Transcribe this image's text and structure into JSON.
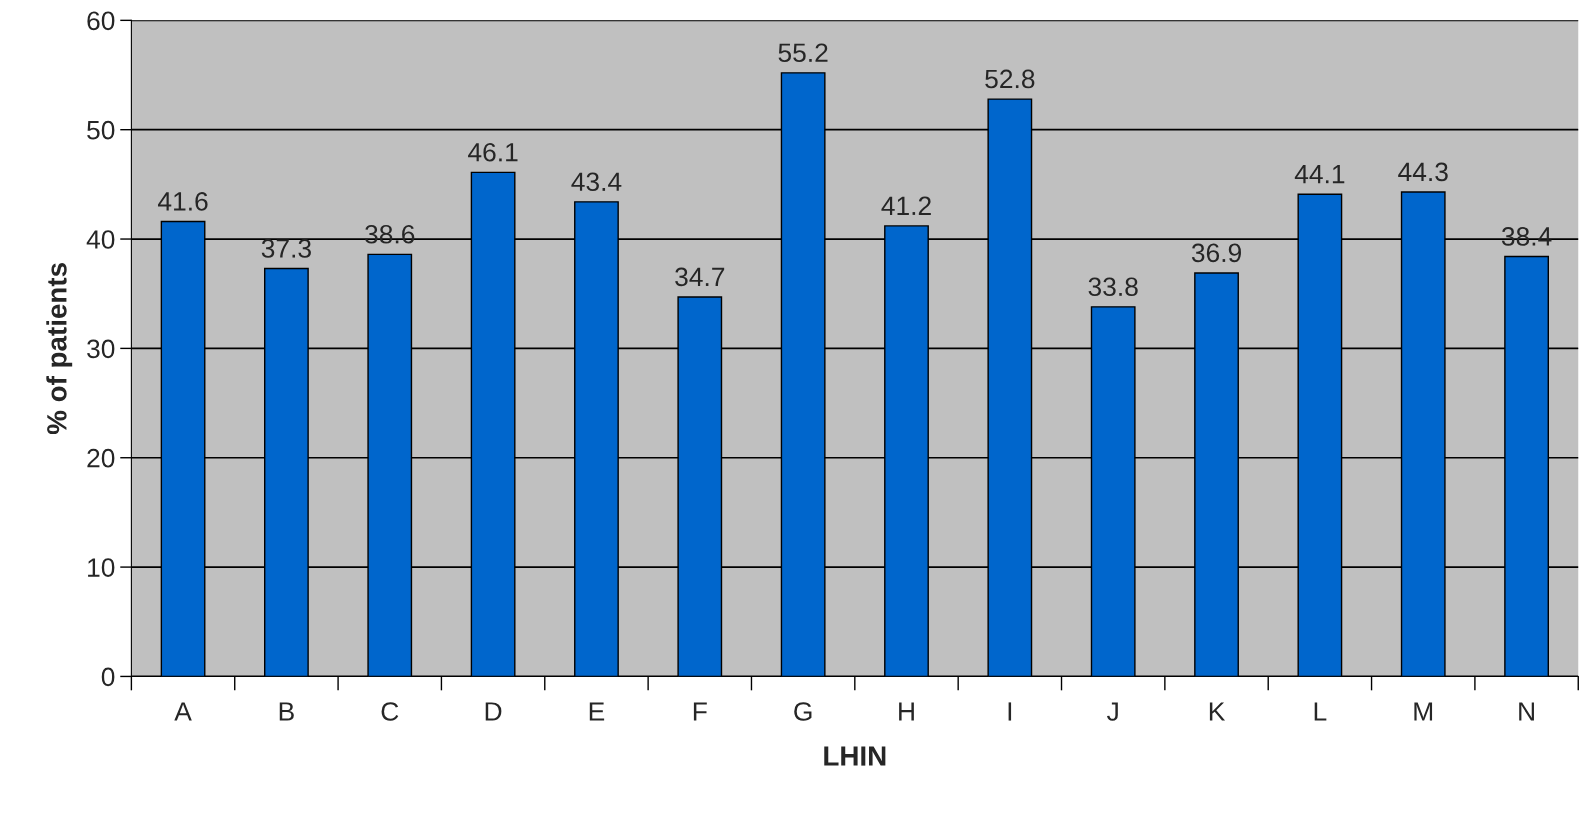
{
  "chart_data": {
    "type": "bar",
    "xlabel": "LHIN",
    "ylabel": "% of patients",
    "categories": [
      "A",
      "B",
      "C",
      "D",
      "E",
      "F",
      "G",
      "H",
      "I",
      "J",
      "K",
      "L",
      "M",
      "N"
    ],
    "values": [
      41.6,
      37.3,
      38.6,
      46.1,
      43.4,
      34.7,
      55.2,
      41.2,
      52.8,
      33.8,
      36.9,
      44.1,
      44.3,
      38.4
    ],
    "color": "#0066cc",
    "ylim": [
      0,
      60
    ],
    "yticks": [
      0,
      10,
      20,
      30,
      40,
      50,
      60
    ],
    "grid": "y",
    "data_labels": true
  }
}
